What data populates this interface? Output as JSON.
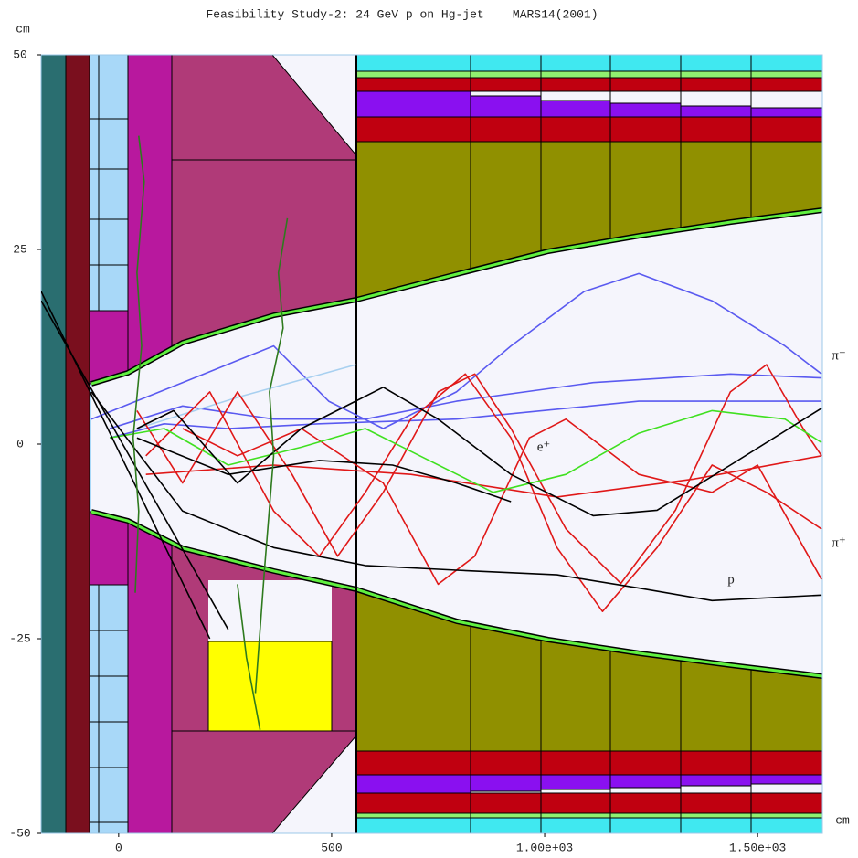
{
  "chart_data": {
    "type": "line",
    "title": "Feasibility Study-2: 24 GeV p on Hg-jet    MARS14(2001)",
    "ylabel": "cm",
    "xlabel": "cm",
    "xlim": [
      -182,
      1652
    ],
    "ylim": [
      -50,
      50
    ],
    "xticks": [
      0,
      500,
      {
        "value": 1000,
        "label": "1.00e+03"
      },
      {
        "value": 1500,
        "label": "1.50e+03"
      }
    ],
    "yticks": [
      50,
      25,
      0,
      -25,
      -50
    ],
    "annotations": [
      "π⁻",
      "π⁺",
      "e⁺",
      "p"
    ],
    "series": [
      {
        "color": "#5a5af0",
        "x": [
          -64,
          150,
          364,
          493,
          621,
          793,
          921,
          1093,
          1221,
          1393,
          1564,
          1650
        ],
        "values": [
          3.2,
          7.9,
          12.6,
          5.5,
          2.0,
          6.7,
          12.6,
          19.6,
          21.9,
          18.4,
          12.6,
          9.0
        ]
      },
      {
        "color": "#5a5af0",
        "x": [
          -21,
          150,
          364,
          579,
          793,
          1114,
          1436,
          1650
        ],
        "values": [
          2.0,
          4.9,
          3.2,
          3.2,
          5.5,
          7.9,
          9.0,
          8.5
        ]
      },
      {
        "color": "#5a5af0",
        "x": [
          -21,
          107,
          257,
          471,
          793,
          1221,
          1650
        ],
        "values": [
          0.8,
          2.6,
          2.0,
          2.6,
          3.2,
          5.5,
          5.5
        ]
      },
      {
        "color": "#a8d0f0",
        "x": [
          43,
          279,
          557
        ],
        "values": [
          2.0,
          6.0,
          10.2
        ]
      },
      {
        "color": "#e01818",
        "x": [
          43,
          150,
          279,
          407,
          514,
          621,
          750,
          836,
          921,
          1050,
          1179,
          1307,
          1436,
          1521,
          1607,
          1650
        ],
        "values": [
          4.3,
          -5.0,
          6.7,
          -3.9,
          -14.4,
          -6.2,
          6.7,
          9.0,
          2.0,
          -10.9,
          -17.9,
          -8.5,
          6.7,
          10.2,
          2.0,
          -1.5
        ]
      },
      {
        "color": "#e01818",
        "x": [
          64,
          214,
          364,
          471,
          579,
          686,
          814,
          921,
          1029,
          1136,
          1264,
          1393,
          1521,
          1650
        ],
        "values": [
          -1.5,
          6.7,
          -8.6,
          -14.4,
          -6.2,
          3.2,
          9.0,
          0.8,
          -13.3,
          -21.5,
          -13.3,
          -2.7,
          -6.2,
          -10.9
        ]
      },
      {
        "color": "#e01818",
        "x": [
          64,
          364,
          686,
          1029,
          1350,
          1650
        ],
        "values": [
          -3.9,
          -2.7,
          -3.9,
          -6.8,
          -4.5,
          -1.5
        ]
      },
      {
        "color": "#e01818",
        "x": [
          150,
          279,
          429,
          621,
          750,
          836,
          964,
          1050,
          1221,
          1393,
          1500,
          1650
        ],
        "values": [
          2.0,
          -1.5,
          2.0,
          -5.0,
          -18.0,
          -14.4,
          0.8,
          3.2,
          -3.9,
          -6.2,
          -2.7,
          -17.4
        ]
      },
      {
        "color": "#40e020",
        "x": [
          -21,
          107,
          257,
          429,
          579,
          707,
          879,
          1050,
          1221,
          1393,
          1564,
          1650
        ],
        "values": [
          0.8,
          2.0,
          -2.7,
          -0.4,
          2.0,
          -1.5,
          -6.2,
          -3.9,
          1.4,
          4.3,
          3.2,
          0.2
        ]
      },
      {
        "color": "#000000",
        "x": [
          -64,
          150,
          364,
          579,
          793,
          1029,
          1221,
          1393,
          1650
        ],
        "values": [
          6.7,
          -8.6,
          -13.3,
          -15.6,
          -16.2,
          -16.8,
          -18.5,
          -20.1,
          -19.4
        ]
      },
      {
        "color": "#000000",
        "x": [
          43,
          129,
          279,
          429,
          621,
          750,
          921,
          1114,
          1264,
          1436,
          1650
        ],
        "values": [
          2.0,
          4.3,
          -5.0,
          2.0,
          7.3,
          3.2,
          -3.9,
          -9.2,
          -8.5,
          -2.7,
          4.6
        ]
      },
      {
        "color": "#000000",
        "x": [
          43,
          257,
          471,
          643,
          793,
          921
        ],
        "values": [
          0.8,
          -3.9,
          -2.1,
          -2.7,
          -5.0,
          -7.4
        ]
      },
      {
        "color": "#000000",
        "x": [
          -182,
          214
        ],
        "values": [
          19.6,
          -25.0
        ]
      },
      {
        "color": "#000000",
        "x": [
          -182,
          257
        ],
        "values": [
          18.4,
          -23.8
        ]
      },
      {
        "color": "#2e7a1e",
        "x": [
          39,
          47,
          34,
          54,
          43,
          60,
          47
        ],
        "values": [
          -19.1,
          -8.6,
          0.8,
          12.6,
          22.0,
          33.7,
          39.6
        ]
      },
      {
        "color": "#2e7a1e",
        "x": [
          321,
          343,
          364,
          354,
          386,
          375,
          396
        ],
        "values": [
          -32.0,
          -15.6,
          -1.5,
          6.7,
          14.9,
          22.0,
          29.0
        ]
      },
      {
        "color": "#2e7a1e",
        "x": [
          279,
          300,
          332
        ],
        "values": [
          -18.0,
          -27.4,
          -36.7
        ]
      }
    ]
  }
}
